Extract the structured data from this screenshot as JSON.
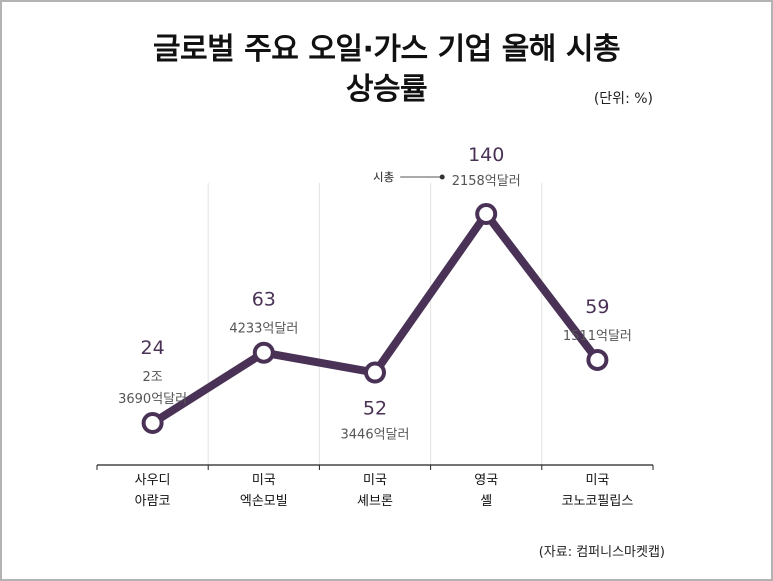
{
  "chart_data": {
    "type": "line",
    "title_line1": "글로벌 주요 오일·가스 기업 올해 시총",
    "title_line2": "상승률",
    "unit": "(단위: %)",
    "source": "(자료: 컴퍼니스마켓캡)",
    "categories": [
      {
        "line1": "사우디",
        "line2": "아람코"
      },
      {
        "line1": "미국",
        "line2": "엑손모빌"
      },
      {
        "line1": "미국",
        "line2": "셰브론"
      },
      {
        "line1": "영국",
        "line2": "셸"
      },
      {
        "line1": "미국",
        "line2": "코노코필립스"
      }
    ],
    "values": [
      24,
      63,
      52,
      140,
      59
    ],
    "market_cap_labels": [
      [
        "2조",
        "3690억달러"
      ],
      [
        "4233억달러"
      ],
      [
        "3446억달러"
      ],
      [
        "2158억달러"
      ],
      [
        "1511억달러"
      ]
    ],
    "market_cap_annotation": "시총",
    "grid": "vertical",
    "line_color": "#4a3257"
  }
}
